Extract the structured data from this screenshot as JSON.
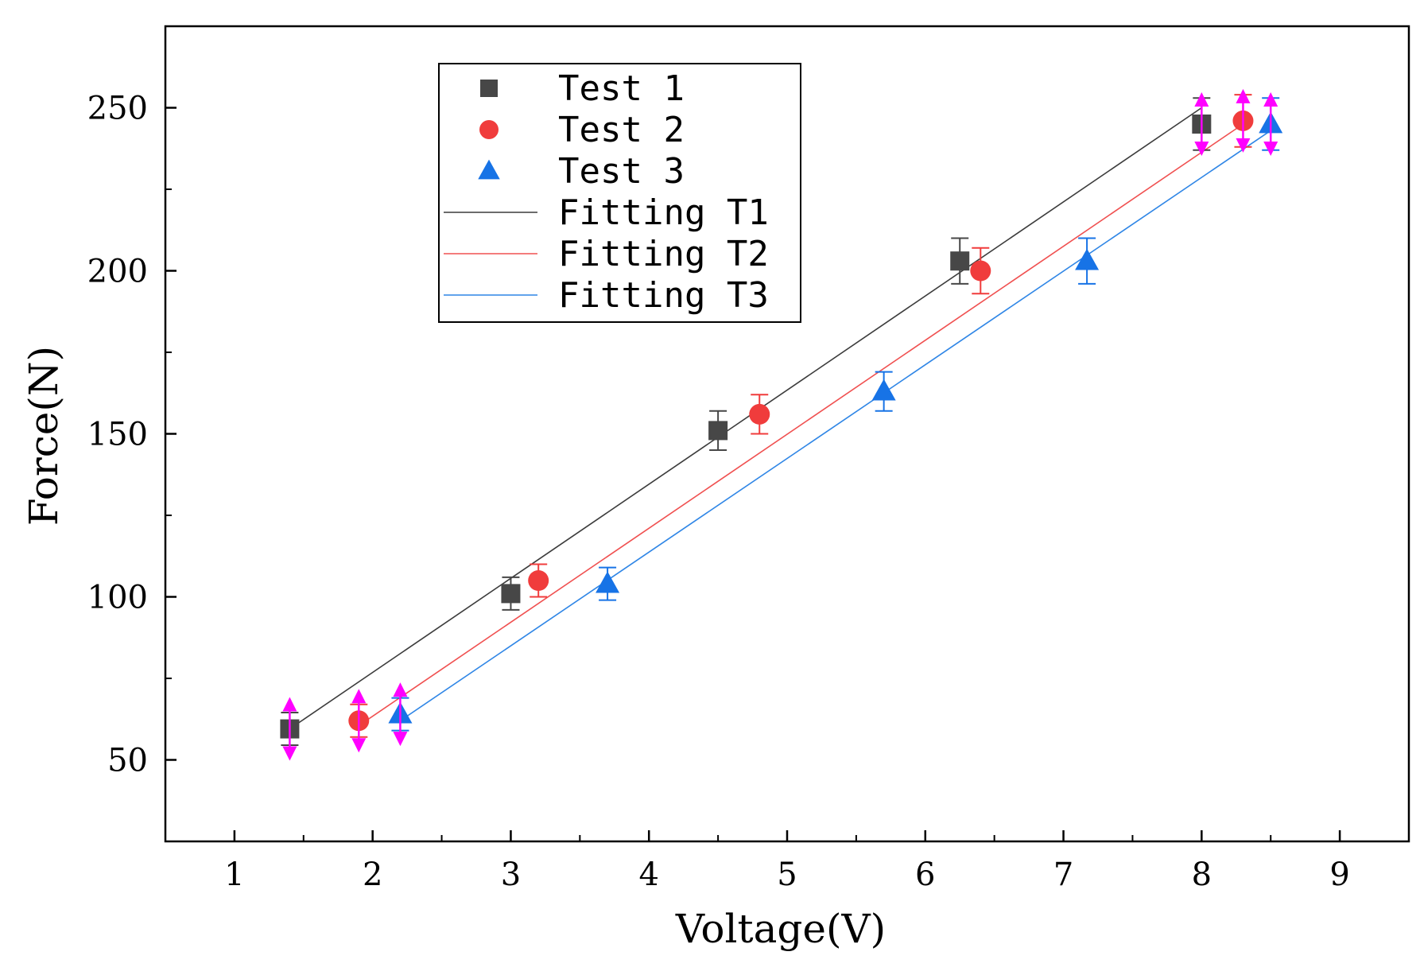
{
  "chart_data": {
    "type": "scatter",
    "title": "",
    "xlabel": "Voltage(V)",
    "ylabel": "Force(N)",
    "xlim": [
      0.5,
      9.5
    ],
    "ylim": [
      25,
      275
    ],
    "xticks": [
      1,
      2,
      3,
      4,
      5,
      6,
      7,
      8,
      9
    ],
    "yticks": [
      50,
      100,
      150,
      200,
      250
    ],
    "grid": false,
    "legend_position": "top-center",
    "series": [
      {
        "name": "Test 1",
        "marker": "square",
        "color": "#474747",
        "x": [
          1.4,
          3.0,
          4.5,
          6.25,
          8.0
        ],
        "y": [
          59.5,
          101,
          151,
          203,
          245
        ],
        "error": [
          5,
          5,
          6,
          7,
          8
        ]
      },
      {
        "name": "Test 2",
        "marker": "circle",
        "color": "#f03c3c",
        "x": [
          1.9,
          3.2,
          4.8,
          6.4,
          8.3
        ],
        "y": [
          62,
          105,
          156,
          200,
          246
        ],
        "error": [
          5,
          5,
          6,
          7,
          8
        ]
      },
      {
        "name": "Test 3",
        "marker": "triangle",
        "color": "#1773e6",
        "x": [
          2.2,
          3.7,
          5.7,
          7.17,
          8.5
        ],
        "y": [
          64,
          104,
          163,
          203,
          245
        ],
        "error": [
          5,
          5,
          6,
          7,
          8
        ]
      }
    ],
    "fits": [
      {
        "name": "Fitting T1",
        "color": "#3c3c3c",
        "x": [
          1.4,
          8.0
        ],
        "y": [
          59.5,
          250
        ]
      },
      {
        "name": "Fitting T2",
        "color": "#f05050",
        "x": [
          1.9,
          8.3
        ],
        "y": [
          60.5,
          245
        ]
      },
      {
        "name": "Fitting T3",
        "color": "#2f86e6",
        "x": [
          2.2,
          8.5
        ],
        "y": [
          62,
          243
        ]
      }
    ],
    "arrow_color": "#ff00ff",
    "arrow_markers": [
      {
        "x": 1.4,
        "y": 59.5
      },
      {
        "x": 1.9,
        "y": 62
      },
      {
        "x": 2.2,
        "y": 64
      },
      {
        "x": 8.0,
        "y": 245
      },
      {
        "x": 8.3,
        "y": 246
      },
      {
        "x": 8.5,
        "y": 245
      }
    ]
  }
}
